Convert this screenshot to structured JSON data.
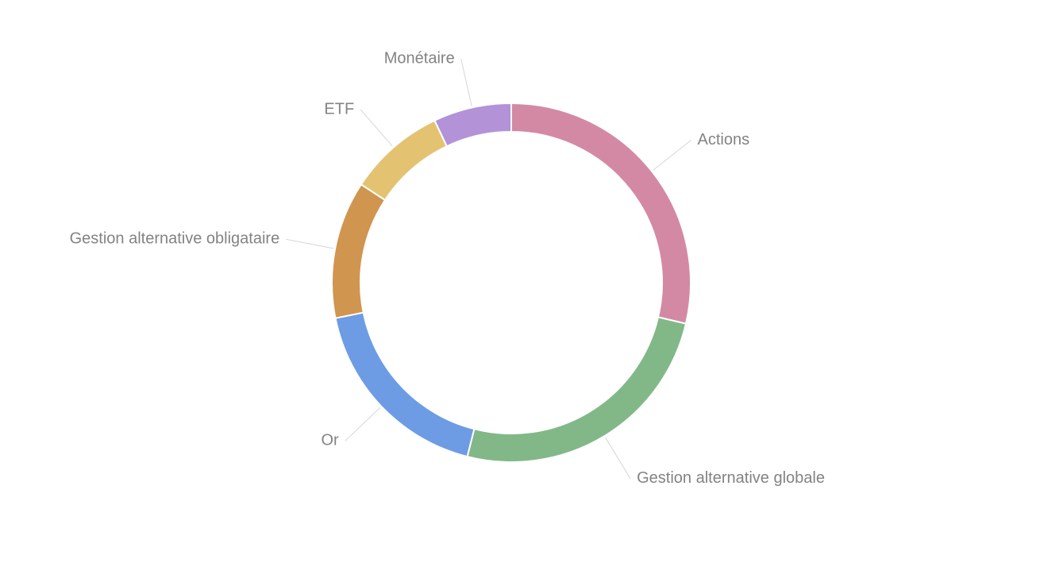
{
  "page": {
    "background_color": "#ffffff"
  },
  "chart_data": {
    "type": "pie",
    "subtype": "donut",
    "title": "",
    "legend_position": "outside-labels-with-leader-lines",
    "label_color": "#838383",
    "leader_line_color": "#d6d6d6",
    "segment_gap_color": "#ffffff",
    "segments": [
      {
        "label": "Actions",
        "color": "#d389a4",
        "start_deg": 0,
        "end_deg": 103.2,
        "percent": 28.7
      },
      {
        "label": "Gestion alternative globale",
        "color": "#82b888",
        "start_deg": 103.2,
        "end_deg": 194.2,
        "percent": 25.3
      },
      {
        "label": "Or",
        "color": "#6d9ce5",
        "start_deg": 194.2,
        "end_deg": 258.6,
        "percent": 17.9
      },
      {
        "label": "Gestion alternative obligataire",
        "color": "#d0954f",
        "start_deg": 258.6,
        "end_deg": 303.2,
        "percent": 12.4
      },
      {
        "label": "ETF",
        "color": "#e3c372",
        "start_deg": 303.2,
        "end_deg": 334.7,
        "percent": 8.8
      },
      {
        "label": "Monétaire",
        "color": "#b392d8",
        "start_deg": 334.7,
        "end_deg": 360,
        "percent": 7.0
      }
    ]
  }
}
